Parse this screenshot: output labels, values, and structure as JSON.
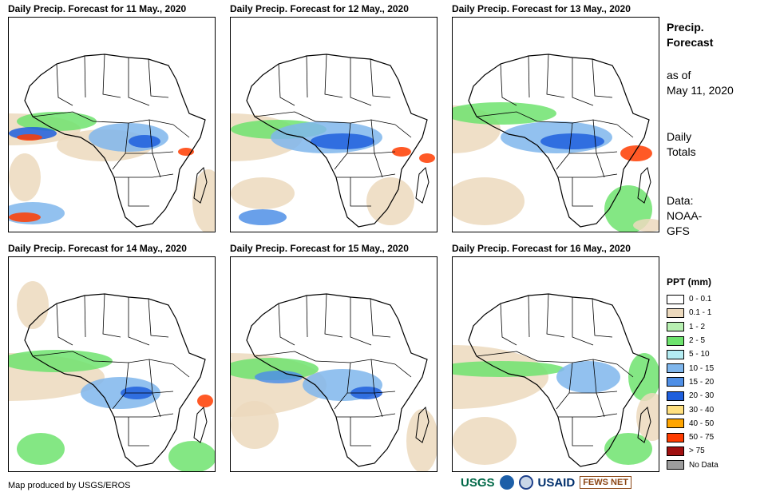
{
  "panels": [
    {
      "title": "Daily Precip. Forecast for 11 May., 2020"
    },
    {
      "title": "Daily Precip. Forecast for 12 May., 2020"
    },
    {
      "title": "Daily Precip. Forecast for 13 May., 2020"
    },
    {
      "title": "Daily Precip. Forecast for 14 May., 2020"
    },
    {
      "title": "Daily Precip. Forecast for 15 May., 2020"
    },
    {
      "title": "Daily Precip. Forecast for 16 May., 2020"
    }
  ],
  "side": {
    "title_line1": "Precip.",
    "title_line2": "Forecast",
    "asof_line1": "as of",
    "asof_line2": "May 11, 2020",
    "totals_line1": "Daily",
    "totals_line2": "Totals",
    "data_line1": "Data:",
    "data_line2": "NOAA-",
    "data_line3": "GFS"
  },
  "legend": {
    "title": "PPT (mm)",
    "items": [
      {
        "label": "0 - 0.1",
        "color": "#ffffff"
      },
      {
        "label": "0.1 - 1",
        "color": "#ecd9bd"
      },
      {
        "label": "1 - 2",
        "color": "#b7f0b1"
      },
      {
        "label": "2 - 5",
        "color": "#6ee36e"
      },
      {
        "label": "5 - 10",
        "color": "#b4ecf2"
      },
      {
        "label": "10 - 15",
        "color": "#7fb6ec"
      },
      {
        "label": "15 - 20",
        "color": "#4f8fe6"
      },
      {
        "label": "20 - 30",
        "color": "#1f5fdd"
      },
      {
        "label": "30 - 40",
        "color": "#ffe080"
      },
      {
        "label": "40 - 50",
        "color": "#ffa500"
      },
      {
        "label": "50 - 75",
        "color": "#ff3c00"
      },
      {
        "label": "> 75",
        "color": "#a01010"
      },
      {
        "label": "No Data",
        "color": "#9c9c9c"
      }
    ]
  },
  "footer": {
    "credit": "Map produced by USGS/EROS"
  },
  "logos": {
    "usgs": "USGS",
    "usaid": "USAID",
    "fews": "FEWS NET"
  }
}
